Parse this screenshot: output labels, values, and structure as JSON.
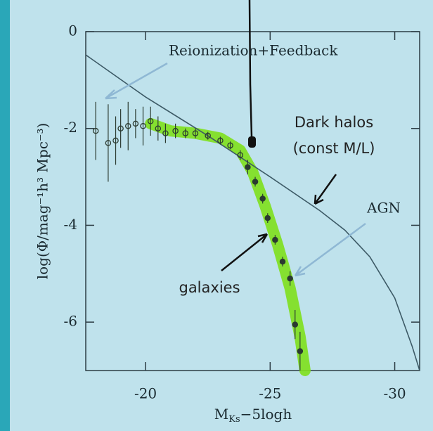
{
  "chart_data": {
    "type": "scatter",
    "x_label": [
      "M",
      "Ks",
      "−5logh"
    ],
    "y_label": "log(Φ/mag⁻¹h³ Mpc⁻³)",
    "xlim": [
      -17.6,
      -31
    ],
    "ylim": [
      -7,
      0
    ],
    "xticks": [
      -20,
      -25,
      -30
    ],
    "yticks": [
      0,
      -2,
      -4,
      -6
    ],
    "series": [
      {
        "kind": "band",
        "color": "#7ee01c",
        "x": [
          -20.2,
          -21,
          -22,
          -23,
          -23.8,
          -24.3,
          -24.8,
          -25.3,
          -25.8,
          -26.2,
          -26.4
        ],
        "values": [
          -1.9,
          -2.05,
          -2.1,
          -2.2,
          -2.45,
          -2.9,
          -3.6,
          -4.4,
          -5.3,
          -6.3,
          -7.0
        ]
      },
      {
        "kind": "line",
        "color": "#3d5a66",
        "x": [
          -17.6,
          -20,
          -22.5,
          -25,
          -27,
          -28,
          -29,
          -30,
          -30.7,
          -31
        ],
        "values": [
          -0.48,
          -1.35,
          -2.15,
          -3.0,
          -3.7,
          -4.1,
          -4.65,
          -5.5,
          -6.5,
          -7.0
        ]
      },
      {
        "kind": "points",
        "color": "#2b3a30",
        "x": [
          -18.0,
          -18.5,
          -18.8,
          -19.0,
          -19.3,
          -19.6,
          -19.9,
          -20.2,
          -20.5,
          -20.8,
          -21.2,
          -21.6,
          -22.0,
          -22.5,
          -23.0,
          -23.4,
          -23.8,
          -24.1,
          -24.4,
          -24.7,
          -24.9,
          -25.2,
          -25.5,
          -25.8,
          -26.0,
          -26.2
        ],
        "values": [
          -2.05,
          -2.3,
          -2.25,
          -2.0,
          -1.95,
          -1.9,
          -1.95,
          -1.85,
          -2.0,
          -2.1,
          -2.05,
          -2.1,
          -2.1,
          -2.15,
          -2.25,
          -2.35,
          -2.55,
          -2.8,
          -3.1,
          -3.45,
          -3.85,
          -4.3,
          -4.75,
          -5.1,
          -6.05,
          -6.6
        ],
        "errors": [
          0.6,
          0.8,
          0.5,
          0.4,
          0.5,
          0.3,
          0.4,
          0.3,
          0.25,
          0.2,
          0.15,
          0.1,
          0.1,
          0.08,
          0.08,
          0.08,
          0.1,
          0.15,
          0.1,
          0.1,
          0.1,
          0.1,
          0.1,
          0.15,
          0.3,
          0.4
        ]
      }
    ],
    "annotations": [
      "Reionization+Feedback",
      "Dark halos",
      "(const M/L)",
      "AGN",
      "galaxies"
    ]
  }
}
